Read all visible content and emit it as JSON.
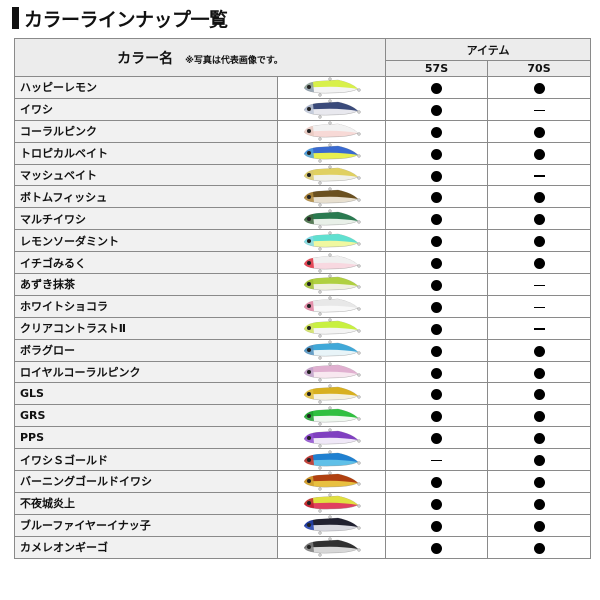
{
  "title": "カラーラインナップ一覧",
  "header": {
    "color_name": "カラー名",
    "note": "※写真は代表画像です。",
    "item": "アイテム",
    "models": [
      "57S",
      "70S"
    ]
  },
  "symbols": {
    "available": "●",
    "unavailable": "—"
  },
  "rows": [
    {
      "name": "ハッピーレモン",
      "57S": true,
      "70S": true,
      "colors": [
        "#d8f04a",
        "#f4f4f4",
        "#8a9aa8"
      ]
    },
    {
      "name": "イワシ",
      "57S": true,
      "70S": false,
      "colors": [
        "#3a4a7a",
        "#e8e8ee",
        "#c0c8d8"
      ]
    },
    {
      "name": "コーラルピンク",
      "57S": true,
      "70S": true,
      "colors": [
        "#f2f2f2",
        "#f7d9d6",
        "#e8c8c0"
      ]
    },
    {
      "name": "トロピカルベイト",
      "57S": true,
      "70S": true,
      "colors": [
        "#3a6ad0",
        "#e8f050",
        "#50a0e0"
      ]
    },
    {
      "name": "マッシュベイト",
      "57S": true,
      "70S": false,
      "colors": [
        "#e0d060",
        "#f0f0e8",
        "#d8c870"
      ]
    },
    {
      "name": "ボトムフィッシュ",
      "57S": true,
      "70S": true,
      "colors": [
        "#6a5020",
        "#e8e0d0",
        "#b08a40"
      ]
    },
    {
      "name": "マルチイワシ",
      "57S": true,
      "70S": true,
      "colors": [
        "#2a7a50",
        "#e8f0e8",
        "#406840"
      ]
    },
    {
      "name": "レモンソーダミント",
      "57S": true,
      "70S": true,
      "colors": [
        "#60e0d0",
        "#f0f8a0",
        "#80d8e8"
      ]
    },
    {
      "name": "イチゴみるく",
      "57S": true,
      "70S": true,
      "colors": [
        "#f0f0f0",
        "#f8d8e0",
        "#e03040"
      ]
    },
    {
      "name": "あずき抹茶",
      "57S": true,
      "70S": false,
      "colors": [
        "#b0d040",
        "#f0f0e0",
        "#a0c030"
      ]
    },
    {
      "name": "ホワイトショコラ",
      "57S": true,
      "70S": false,
      "colors": [
        "#e8e8e8",
        "#f8f8f8",
        "#e080a0"
      ]
    },
    {
      "name": "クリアコントラストⅡ",
      "57S": true,
      "70S": false,
      "colors": [
        "#c8f040",
        "#f4f4f4",
        "#d0e060"
      ]
    },
    {
      "name": "ボラグロー",
      "57S": true,
      "70S": true,
      "colors": [
        "#40a8d8",
        "#e8f4f8",
        "#5090c0"
      ]
    },
    {
      "name": "ロイヤルコーラルピンク",
      "57S": true,
      "70S": true,
      "colors": [
        "#e0b0d0",
        "#f8e8f0",
        "#c0a0c8"
      ]
    },
    {
      "name": "GLS",
      "57S": true,
      "70S": true,
      "colors": [
        "#d8b020",
        "#f4f0e0",
        "#e0c040"
      ]
    },
    {
      "name": "GRS",
      "57S": true,
      "70S": true,
      "colors": [
        "#30c040",
        "#f0f8f0",
        "#20a030"
      ]
    },
    {
      "name": "PPS",
      "57S": true,
      "70S": true,
      "colors": [
        "#8040c0",
        "#f0e8f8",
        "#9050d0"
      ]
    },
    {
      "name": "イワシＳゴールド",
      "57S": false,
      "70S": true,
      "colors": [
        "#2080d0",
        "#60c0e8",
        "#d03020"
      ]
    },
    {
      "name": "バーニングゴールドイワシ",
      "57S": true,
      "70S": true,
      "colors": [
        "#b04010",
        "#e8c040",
        "#d0a030"
      ]
    },
    {
      "name": "不夜城炎上",
      "57S": true,
      "70S": true,
      "colors": [
        "#e0e040",
        "#e04060",
        "#c02030"
      ]
    },
    {
      "name": "ブルーファイヤーイナッ子",
      "57S": true,
      "70S": true,
      "colors": [
        "#202030",
        "#d8d8e0",
        "#2040b0"
      ]
    },
    {
      "name": "カメレオンギーゴ",
      "57S": true,
      "70S": true,
      "colors": [
        "#303030",
        "#d8d8d8",
        "#808080"
      ]
    }
  ]
}
